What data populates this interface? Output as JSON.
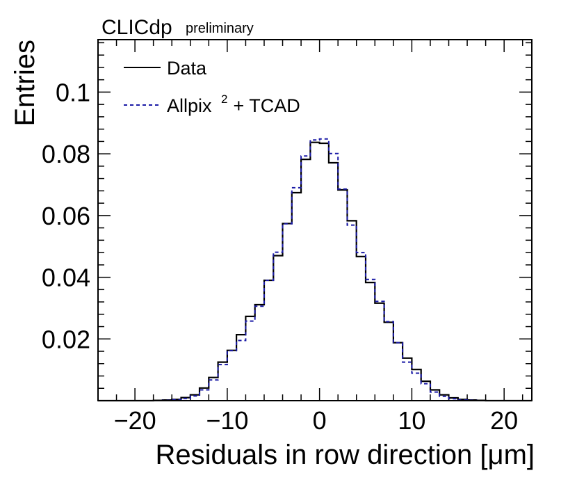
{
  "chart_data": {
    "type": "histogram",
    "title": "CLICdp",
    "subtitle": "preliminary",
    "xlabel": "Residuals in row direction [μm]",
    "ylabel": "Entries",
    "xlim": [
      -24,
      23
    ],
    "ylim": [
      0,
      0.117
    ],
    "xticks": [
      -20,
      -10,
      0,
      10,
      20
    ],
    "xtick_labels": [
      "−20",
      "−10",
      "0",
      "10",
      "20"
    ],
    "yticks": [
      0.02,
      0.04,
      0.06,
      0.08,
      0.1
    ],
    "ytick_labels": [
      "0.02",
      "0.04",
      "0.06",
      "0.08",
      "0.1"
    ],
    "bin_width": 1,
    "bin_edges_start": -24,
    "series": [
      {
        "name": "Data",
        "color": "#000000",
        "style": "solid",
        "values": [
          0,
          0,
          0,
          0,
          0,
          0,
          0.0001,
          0.0002,
          0.0004,
          0.001,
          0.0019,
          0.0041,
          0.0075,
          0.0125,
          0.0163,
          0.0214,
          0.0273,
          0.0311,
          0.039,
          0.047,
          0.0574,
          0.0674,
          0.0782,
          0.0837,
          0.0834,
          0.0771,
          0.0683,
          0.0583,
          0.0467,
          0.0383,
          0.0316,
          0.0254,
          0.0188,
          0.0138,
          0.0101,
          0.0063,
          0.0035,
          0.0019,
          0.0009,
          0.0004,
          0.0002,
          0.0001,
          0,
          0,
          0,
          0,
          0
        ]
      },
      {
        "name": "Allpix",
        "name_superscript": "2",
        "name_suffix": " + TCAD",
        "color": "#1a1aa6",
        "style": "dashed",
        "values": [
          0,
          0,
          0,
          0,
          0,
          0,
          0,
          0.0001,
          0.0003,
          0.0007,
          0.0015,
          0.0035,
          0.0067,
          0.0117,
          0.0162,
          0.0195,
          0.0258,
          0.0306,
          0.039,
          0.0481,
          0.0573,
          0.069,
          0.0793,
          0.0845,
          0.0848,
          0.0801,
          0.0686,
          0.0569,
          0.048,
          0.0393,
          0.0322,
          0.0256,
          0.0188,
          0.0125,
          0.0089,
          0.0055,
          0.0028,
          0.0014,
          0.0006,
          0.0002,
          0.0001,
          0,
          0,
          0,
          0,
          0,
          0
        ]
      }
    ],
    "legend_position": "top-left"
  }
}
